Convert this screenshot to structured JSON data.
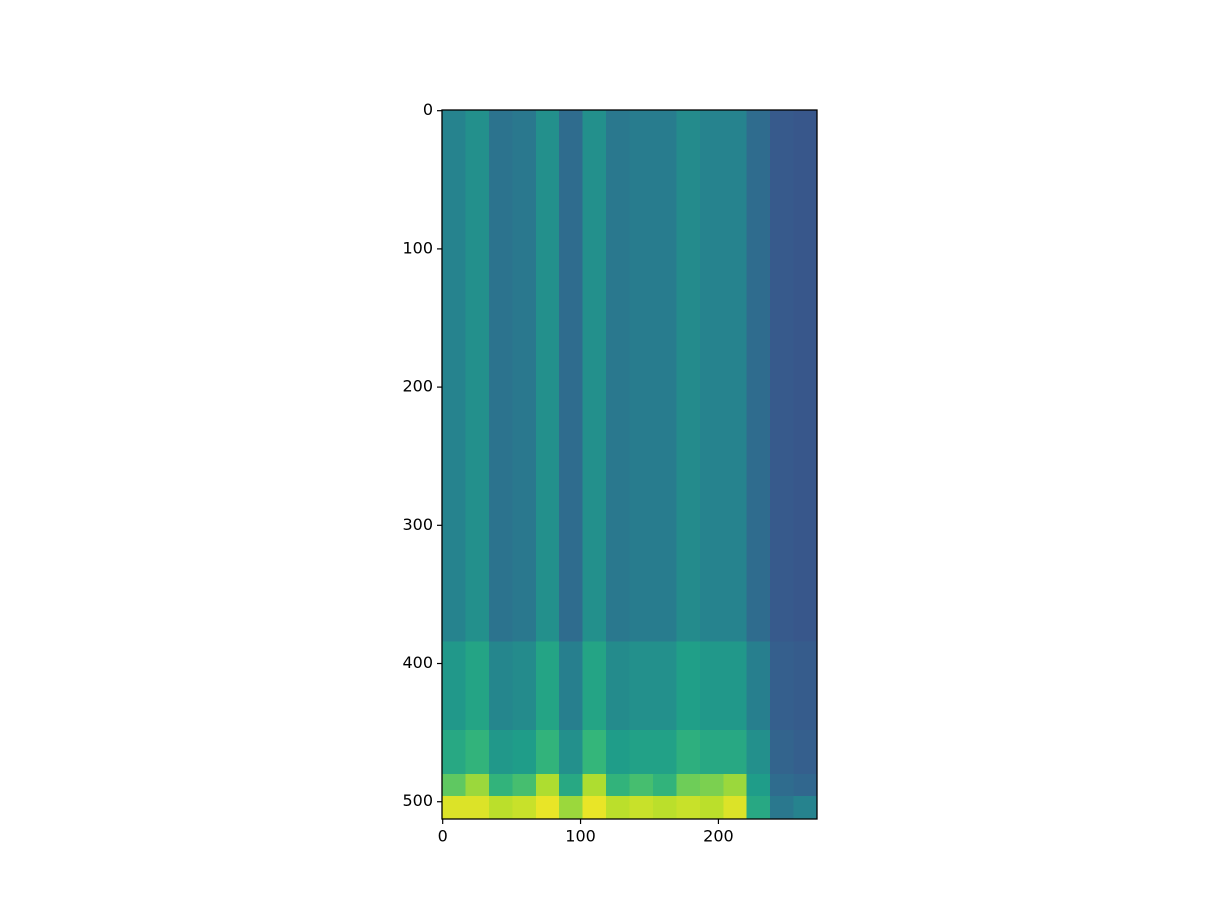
{
  "chart_data": {
    "type": "heatmap",
    "colormap": "viridis",
    "clim": [
      0,
      1
    ],
    "xlim": [
      -0.5,
      271.5
    ],
    "ylim": [
      512.5,
      -0.5
    ],
    "xticks": [
      0,
      100,
      200
    ],
    "yticks": [
      0,
      100,
      200,
      300,
      400,
      500
    ],
    "xbins": [
      -0.5,
      16.5,
      33.5,
      50.5,
      67.5,
      84.5,
      101.5,
      118.5,
      135.5,
      152.5,
      169.5,
      186.5,
      203.5,
      220.5,
      237.5,
      254.5,
      271.5
    ],
    "ybins": [
      -0.5,
      64,
      128,
      192,
      256,
      320,
      384,
      448,
      480,
      496,
      512.5
    ],
    "values": [
      [
        0.45,
        0.5,
        0.38,
        0.4,
        0.5,
        0.35,
        0.5,
        0.4,
        0.42,
        0.42,
        0.48,
        0.45,
        0.45,
        0.35,
        0.28,
        0.27
      ],
      [
        0.45,
        0.5,
        0.38,
        0.4,
        0.5,
        0.35,
        0.5,
        0.4,
        0.42,
        0.42,
        0.48,
        0.45,
        0.45,
        0.35,
        0.28,
        0.27
      ],
      [
        0.45,
        0.5,
        0.38,
        0.4,
        0.5,
        0.35,
        0.5,
        0.4,
        0.42,
        0.42,
        0.48,
        0.45,
        0.45,
        0.35,
        0.28,
        0.27
      ],
      [
        0.45,
        0.5,
        0.38,
        0.4,
        0.5,
        0.35,
        0.5,
        0.4,
        0.42,
        0.42,
        0.48,
        0.45,
        0.45,
        0.35,
        0.28,
        0.27
      ],
      [
        0.45,
        0.5,
        0.38,
        0.4,
        0.5,
        0.35,
        0.5,
        0.4,
        0.42,
        0.42,
        0.48,
        0.45,
        0.45,
        0.35,
        0.28,
        0.27
      ],
      [
        0.45,
        0.5,
        0.38,
        0.4,
        0.5,
        0.35,
        0.5,
        0.4,
        0.42,
        0.42,
        0.48,
        0.45,
        0.45,
        0.35,
        0.28,
        0.27
      ],
      [
        0.53,
        0.58,
        0.46,
        0.48,
        0.58,
        0.43,
        0.58,
        0.48,
        0.5,
        0.5,
        0.56,
        0.53,
        0.53,
        0.43,
        0.3,
        0.29
      ],
      [
        0.6,
        0.65,
        0.53,
        0.55,
        0.65,
        0.5,
        0.66,
        0.55,
        0.57,
        0.57,
        0.63,
        0.6,
        0.6,
        0.5,
        0.32,
        0.3
      ],
      [
        0.75,
        0.85,
        0.65,
        0.7,
        0.88,
        0.6,
        0.88,
        0.65,
        0.7,
        0.65,
        0.78,
        0.8,
        0.85,
        0.55,
        0.35,
        0.33
      ],
      [
        0.95,
        0.95,
        0.9,
        0.92,
        0.97,
        0.85,
        0.97,
        0.9,
        0.92,
        0.9,
        0.92,
        0.9,
        0.95,
        0.6,
        0.4,
        0.45
      ]
    ]
  }
}
